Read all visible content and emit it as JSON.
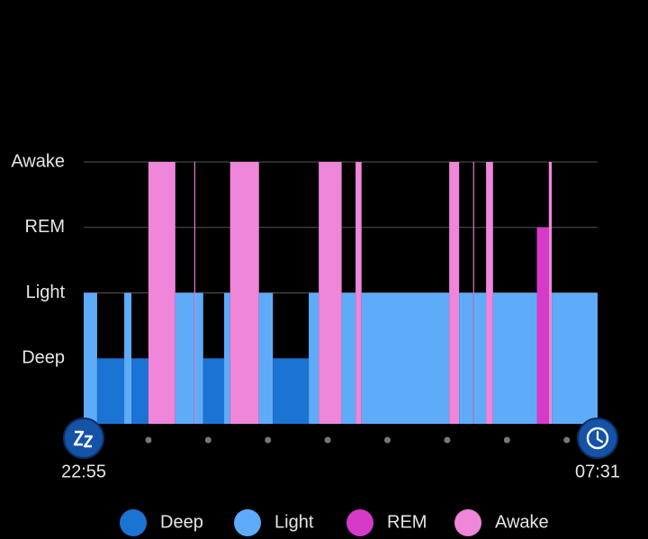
{
  "chart_data": {
    "type": "hypnogram",
    "y_categories": [
      "Deep",
      "Light",
      "REM",
      "Awake"
    ],
    "colors": [
      "#1b74d3",
      "#5eacf9",
      "#d63ac8",
      "#ef86d9"
    ],
    "grid": true,
    "xlim": [
      0,
      516
    ],
    "xticks": [
      {
        "value": 0,
        "label": "22:55"
      },
      {
        "value": 516,
        "label": "07:31"
      }
    ],
    "minor_xticks": [
      65,
      125,
      185,
      245,
      305,
      365,
      425,
      485
    ],
    "segments": [
      {
        "stage": "Light",
        "start": 0,
        "end": 13.5
      },
      {
        "stage": "Deep",
        "start": 13.5,
        "end": 40.7
      },
      {
        "stage": "Light",
        "start": 40.7,
        "end": 47.9
      },
      {
        "stage": "Deep",
        "start": 47.9,
        "end": 65
      },
      {
        "stage": "Awake",
        "start": 65,
        "end": 92
      },
      {
        "stage": "Light",
        "start": 92,
        "end": 111
      },
      {
        "stage": "Awake",
        "start": 111,
        "end": 112
      },
      {
        "stage": "Light",
        "start": 112,
        "end": 120
      },
      {
        "stage": "Deep",
        "start": 120,
        "end": 141
      },
      {
        "stage": "Light",
        "start": 141,
        "end": 147
      },
      {
        "stage": "Awake",
        "start": 147,
        "end": 176
      },
      {
        "stage": "Light",
        "start": 176,
        "end": 190
      },
      {
        "stage": "Deep",
        "start": 190,
        "end": 226
      },
      {
        "stage": "Light",
        "start": 226,
        "end": 236
      },
      {
        "stage": "Awake",
        "start": 236,
        "end": 259
      },
      {
        "stage": "Light",
        "start": 259,
        "end": 273
      },
      {
        "stage": "Awake",
        "start": 273,
        "end": 279
      },
      {
        "stage": "Light",
        "start": 279,
        "end": 367
      },
      {
        "stage": "Awake",
        "start": 367,
        "end": 377
      },
      {
        "stage": "Light",
        "start": 377,
        "end": 391
      },
      {
        "stage": "Awake",
        "start": 391,
        "end": 392
      },
      {
        "stage": "Light",
        "start": 392,
        "end": 404
      },
      {
        "stage": "Awake",
        "start": 404,
        "end": 411
      },
      {
        "stage": "Light",
        "start": 411,
        "end": 455
      },
      {
        "stage": "REM",
        "start": 455,
        "end": 467
      },
      {
        "stage": "Awake",
        "start": 467,
        "end": 470
      },
      {
        "stage": "Light",
        "start": 470,
        "end": 516
      }
    ]
  }
}
